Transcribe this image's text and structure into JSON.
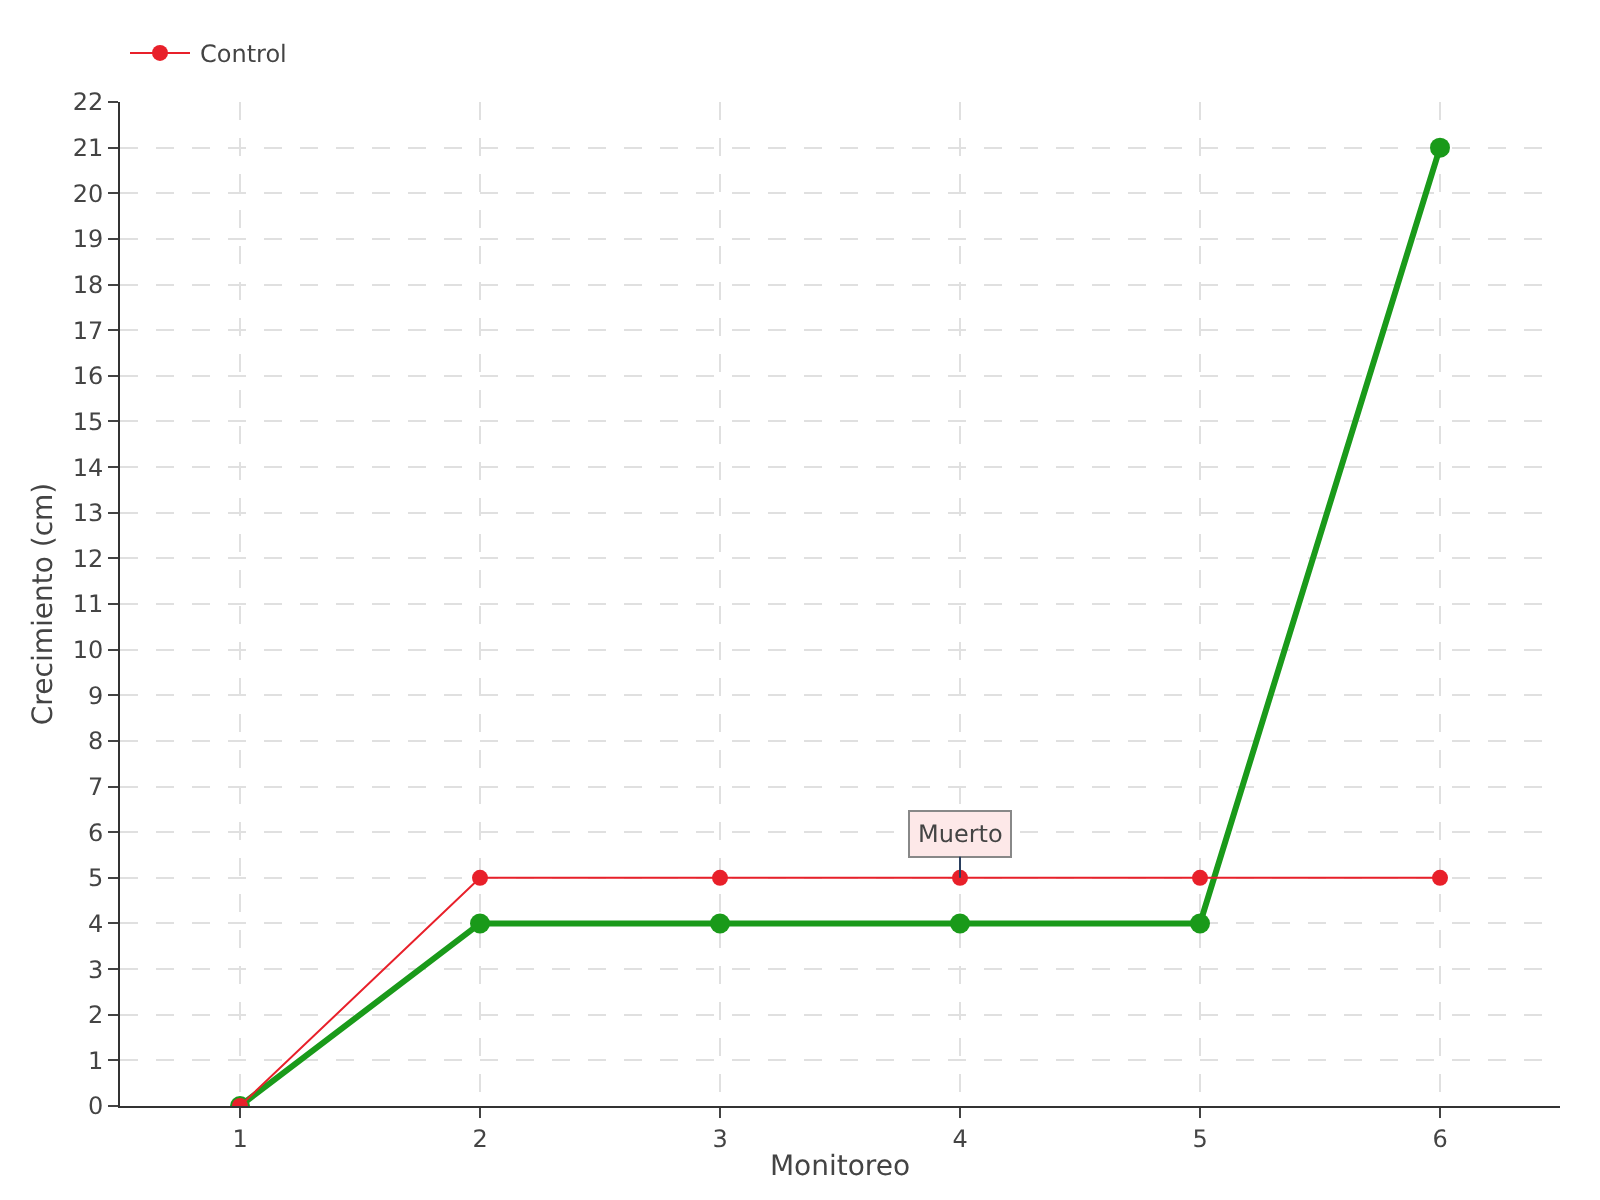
{
  "chart_data": {
    "type": "line",
    "xlabel": "Monitoreo",
    "ylabel": "Crecimiento (cm)",
    "x": [
      1,
      2,
      3,
      4,
      5,
      6
    ],
    "series": [
      {
        "color": "#1a9a1a",
        "values": [
          0,
          4,
          4,
          4,
          4,
          21
        ]
      },
      {
        "name": "Control",
        "color": "#e8202a",
        "values": [
          0,
          5,
          5,
          5,
          5,
          5
        ]
      }
    ],
    "xlim": [
      0.5,
      6.5
    ],
    "xticks": [
      1,
      2,
      3,
      4,
      5,
      6
    ],
    "ylim": [
      0,
      22
    ],
    "yticks": [
      0,
      1,
      2,
      3,
      4,
      5,
      6,
      7,
      8,
      9,
      10,
      11,
      12,
      13,
      14,
      15,
      16,
      17,
      18,
      19,
      20,
      21,
      22
    ],
    "annotations": [
      {
        "text": "Muerto",
        "x": 4,
        "y": 5
      }
    ],
    "grid": true,
    "legend": "top left",
    "marker": "circle",
    "line_style": "solid"
  }
}
